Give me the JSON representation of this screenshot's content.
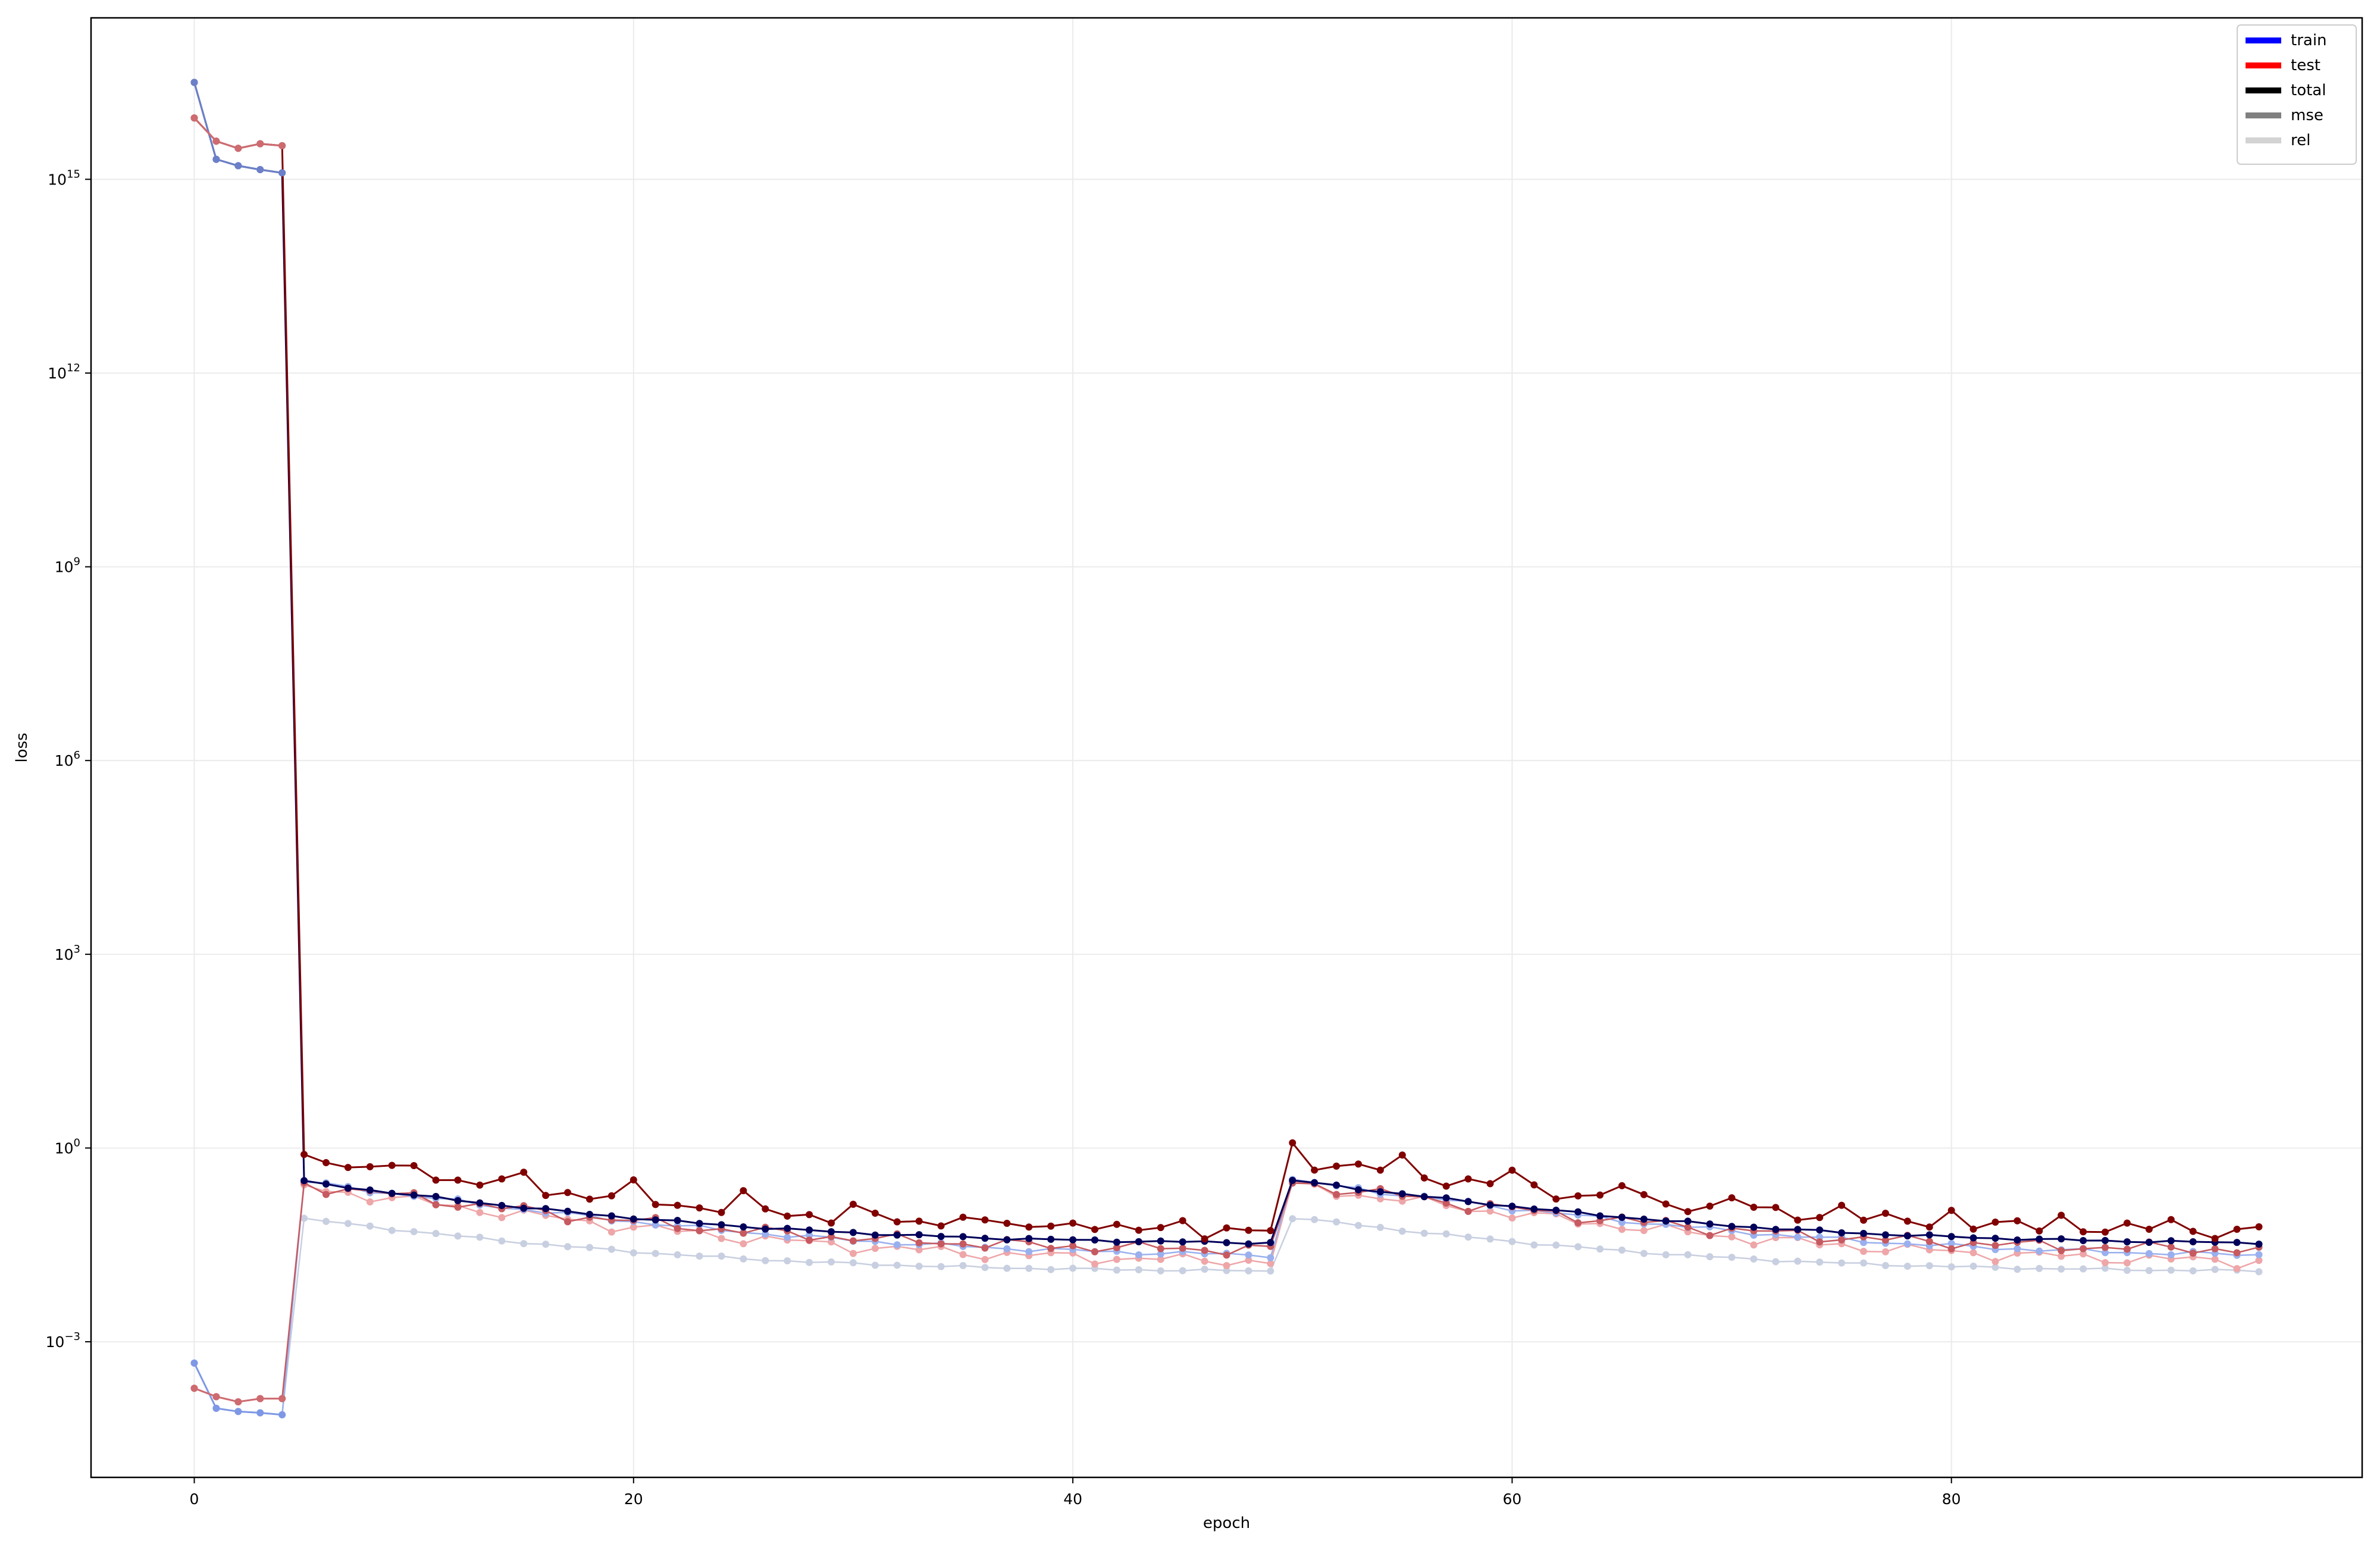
{
  "chart_data": {
    "type": "line",
    "xlabel": "epoch",
    "ylabel": "loss",
    "yscale": "log",
    "xlim": [
      -4.7,
      98.7
    ],
    "ylim_log10": [
      -5.1,
      17.5
    ],
    "x_ticks": [
      0,
      20,
      40,
      60,
      80
    ],
    "y_ticks": [
      {
        "exp": -3,
        "base": "10",
        "sup": "−3"
      },
      {
        "exp": 0,
        "base": "10",
        "sup": "0"
      },
      {
        "exp": 3,
        "base": "10",
        "sup": "3"
      },
      {
        "exp": 6,
        "base": "10",
        "sup": "6"
      },
      {
        "exp": 9,
        "base": "10",
        "sup": "9"
      },
      {
        "exp": 12,
        "base": "10",
        "sup": "12"
      },
      {
        "exp": 15,
        "base": "10",
        "sup": "15"
      }
    ],
    "grid": true,
    "legend_position": "top-right",
    "legend": [
      {
        "label": "train",
        "color": "#0000ff"
      },
      {
        "label": "test",
        "color": "#ff0000"
      },
      {
        "label": "total",
        "color": "#000000"
      },
      {
        "label": "mse",
        "color": "#808080"
      },
      {
        "label": "rel",
        "color": "#d3d3d3"
      }
    ],
    "x": [
      0,
      1,
      2,
      3,
      4,
      5,
      6,
      7,
      8,
      9,
      10,
      11,
      12,
      13,
      14,
      15,
      16,
      17,
      18,
      19,
      20,
      21,
      22,
      23,
      24,
      25,
      26,
      27,
      28,
      29,
      30,
      31,
      32,
      33,
      34,
      35,
      36,
      37,
      38,
      39,
      40,
      41,
      42,
      43,
      44,
      45,
      46,
      47,
      48,
      49,
      50,
      51,
      52,
      53,
      54,
      55,
      56,
      57,
      58,
      59,
      60,
      61,
      62,
      63,
      64,
      65,
      66,
      67,
      68,
      69,
      70,
      71,
      72,
      73,
      74,
      75,
      76,
      77,
      78,
      79,
      80,
      81,
      82,
      83,
      84,
      85,
      86,
      87,
      88,
      89,
      90,
      91,
      92,
      93,
      94
    ],
    "jump_epoch": 5,
    "early_log10": {
      "train_total": [
        16.5,
        15.31,
        15.21,
        15.15,
        15.1
      ],
      "test_total": [
        15.95,
        15.59,
        15.48,
        15.55,
        15.52
      ],
      "train_rel": [
        -3.33,
        -4.03,
        -4.08,
        -4.1,
        -4.13
      ],
      "test_rel": [
        -3.72,
        -3.85,
        -3.93,
        -3.88,
        -3.88
      ]
    },
    "later_anchor_values": {
      "train_total": [
        0.31,
        0.18,
        0.05,
        0.04,
        0.04
      ],
      "test_total": [
        0.7,
        0.37,
        0.05,
        0.035,
        0.035
      ],
      "mse": [
        0.2,
        0.08,
        0.02,
        0.015,
        0.015
      ],
      "rel": [
        0.08,
        0.03,
        0.012,
        0.009,
        0.009
      ]
    },
    "colors": {
      "train_total": "#00005a",
      "test_total": "#800000",
      "train_mse": "#5a6ab8",
      "test_mse": "#c65a60",
      "train_rel": "#9ab0ee",
      "test_rel": "#eea6a8",
      "rel_light": "#c8cfe0",
      "test_early": "#cd6b70",
      "train_early": "#6b80c8"
    }
  }
}
